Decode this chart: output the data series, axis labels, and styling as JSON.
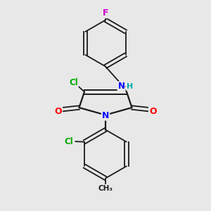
{
  "background_color": "#e8e8e8",
  "bond_color": "#1a1a1a",
  "atom_colors": {
    "F": "#cc00cc",
    "Cl": "#00aa00",
    "N": "#0000ff",
    "O": "#ff0000",
    "C": "#1a1a1a",
    "H": "#00aaaa"
  },
  "figsize": [
    3.0,
    3.0
  ],
  "dpi": 100
}
